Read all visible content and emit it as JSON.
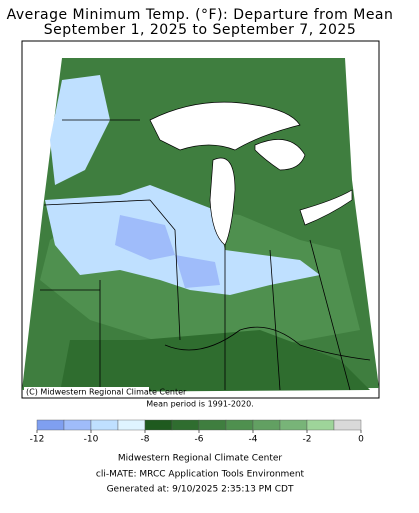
{
  "header": {
    "title": "Average Minimum Temp. (°F): Departure from Mean",
    "subtitle": "September 1, 2025 to September 7, 2025"
  },
  "map": {
    "credit": "(C) Midwestern Regional Climate Center",
    "note": "Mean period is 1991-2020."
  },
  "colorbar": {
    "bins": [
      -12,
      -11,
      -10,
      -9,
      -8,
      -7,
      -6,
      -5,
      -4,
      -3,
      -2,
      -1,
      0
    ],
    "colors": [
      "#7f9ff0",
      "#9fbcfa",
      "#bfe0ff",
      "#dff4ff",
      "#1f5a1f",
      "#2f6d2f",
      "#3f7e3f",
      "#4f904f",
      "#62a062",
      "#78b478",
      "#9ed49a",
      "#d9d9d9"
    ],
    "ticks": [
      -12,
      -10,
      -8,
      -6,
      -4,
      -2,
      0
    ]
  },
  "footer": {
    "lines": [
      "Midwestern Regional Climate Center",
      "cli-MATE: MRCC Application Tools Environment",
      "Generated at: 9/10/2025 2:35:13 PM CDT"
    ]
  }
}
